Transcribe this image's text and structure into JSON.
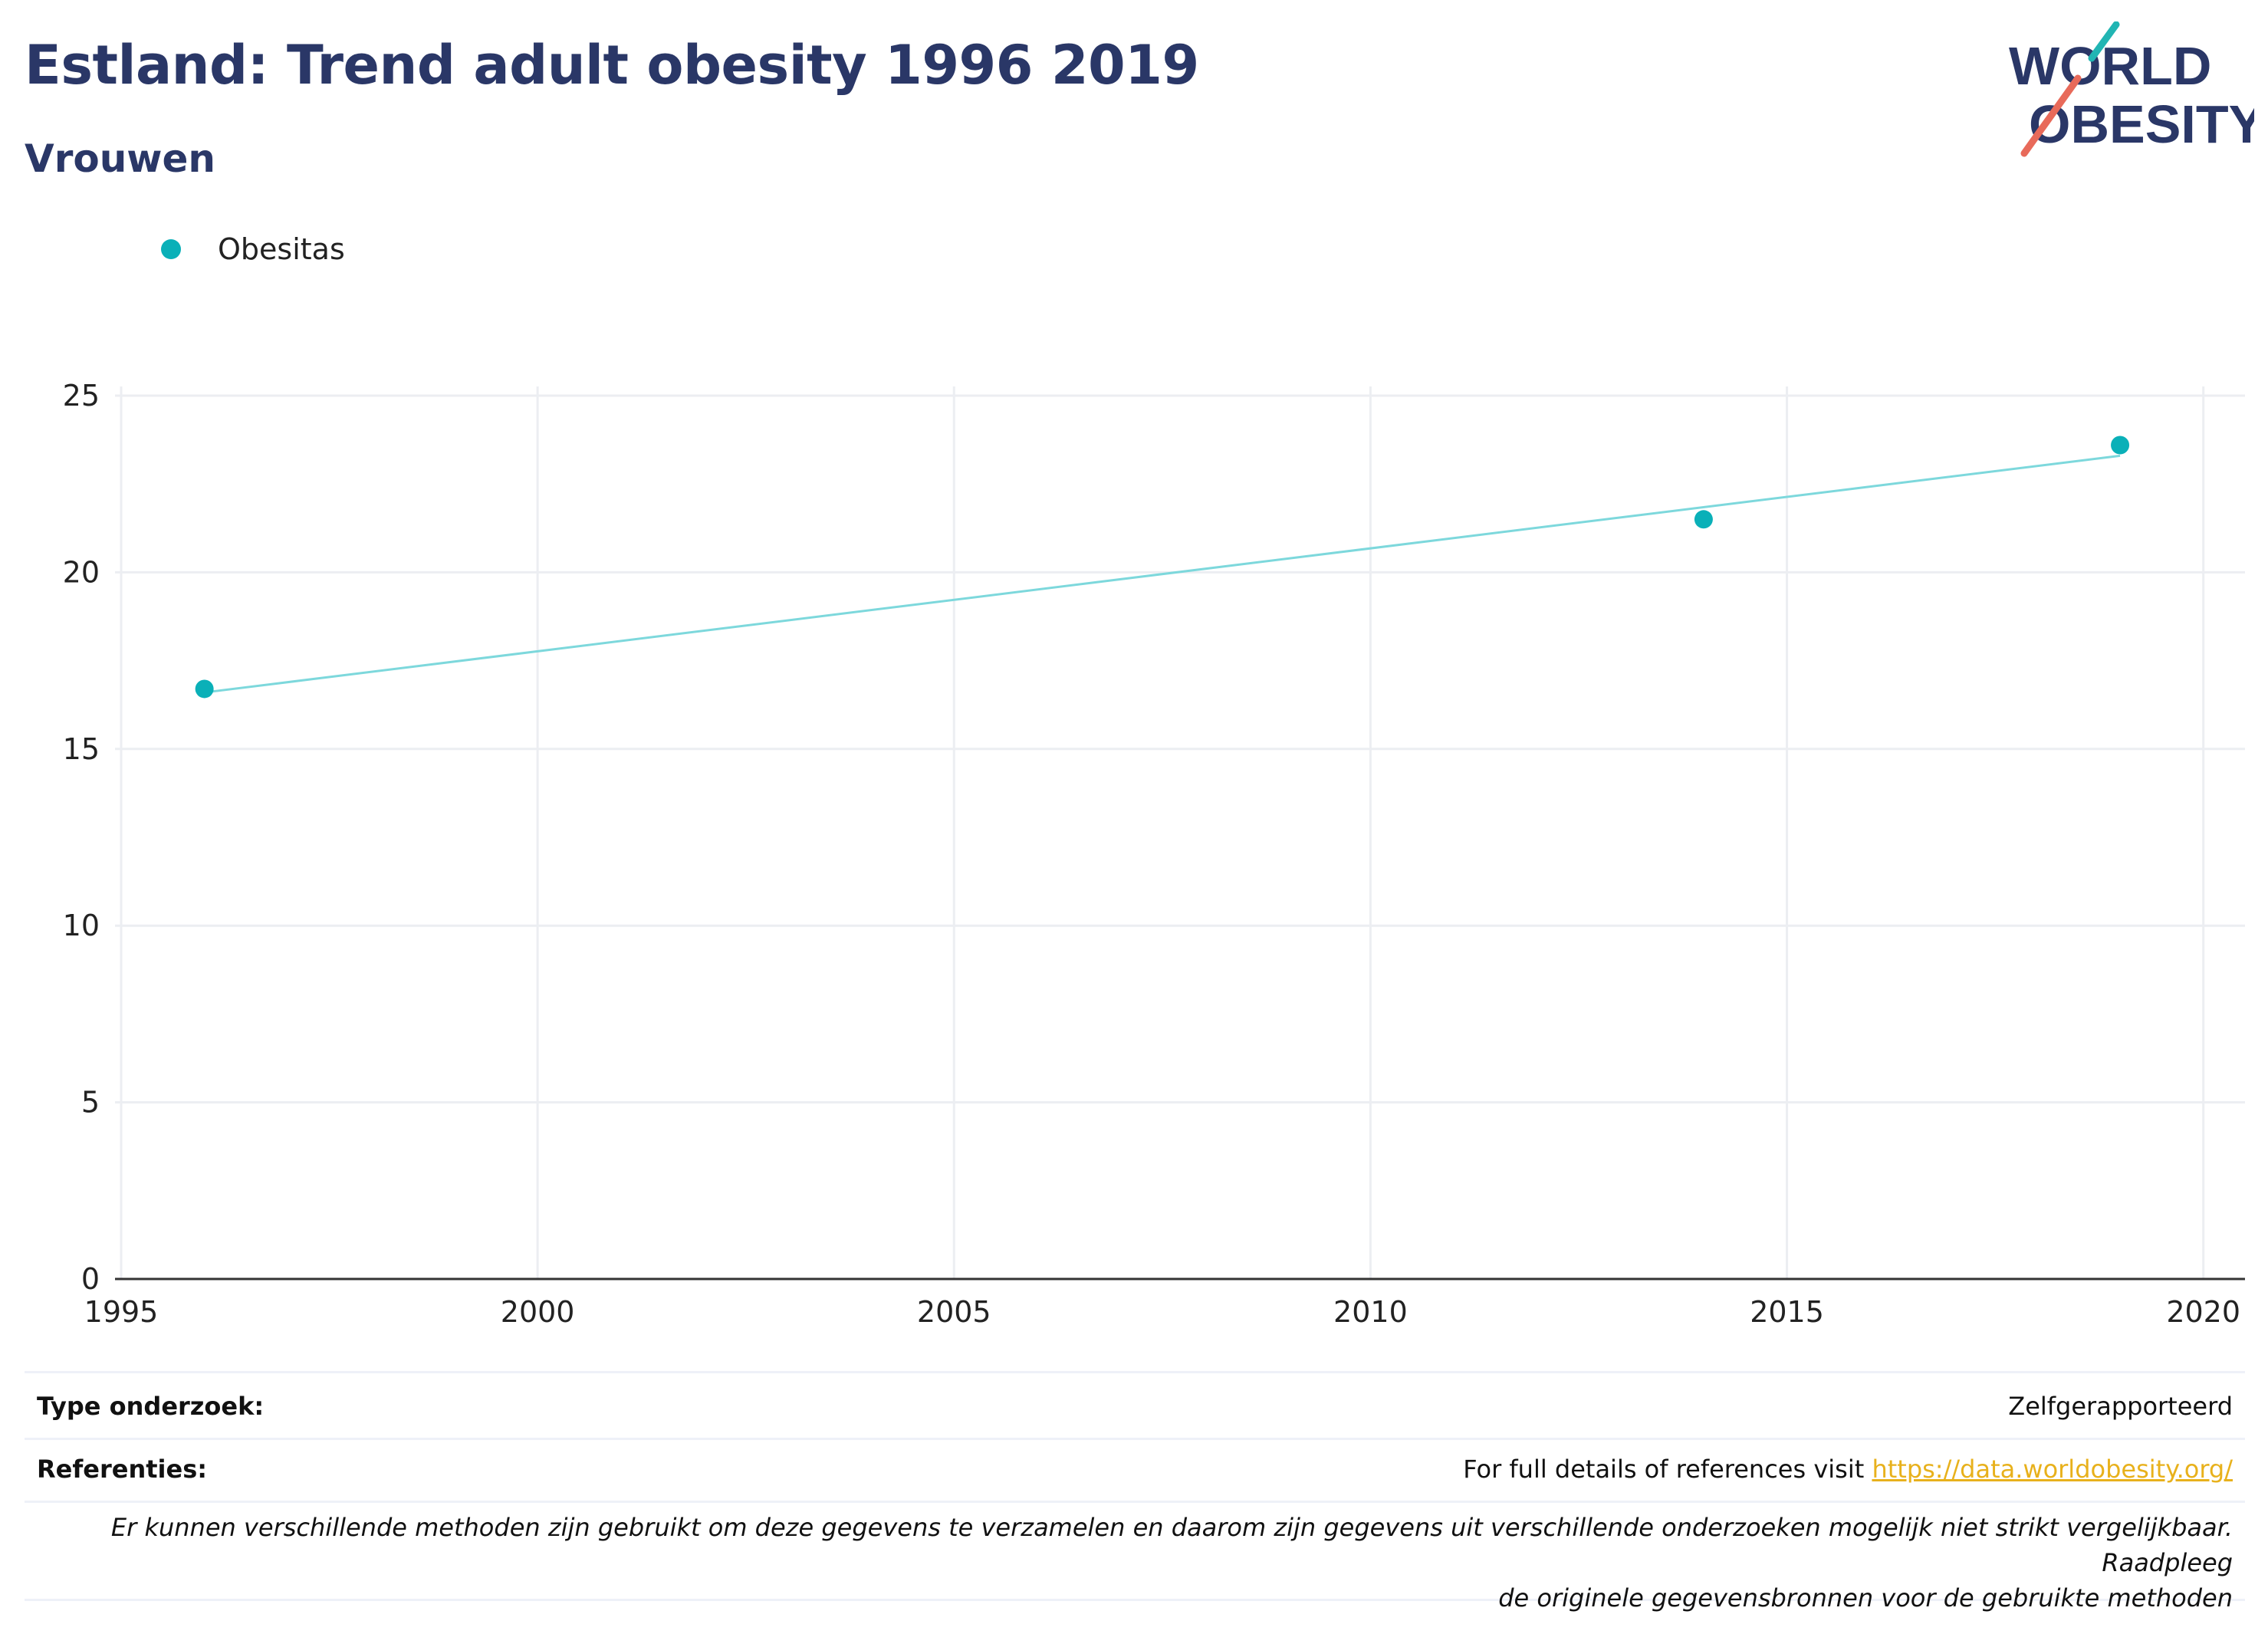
{
  "header": {
    "title": "Estland: Trend adult obesity 1996 2019",
    "subtitle": "Vrouwen"
  },
  "logo": {
    "line1": "WORLD",
    "line2": "OBESITY",
    "colors": {
      "text": "#2a3767",
      "slash_top": "#21b5b3",
      "slash_bottom": "#e86a5a"
    }
  },
  "colors": {
    "title": "#2a3767",
    "series": "#0ab0b8",
    "trendline": "#7dd8dc",
    "grid": "#eceef2",
    "axis": "#333333",
    "link": "#e8b11c"
  },
  "chart_data": {
    "type": "scatter",
    "title": "Estland: Trend adult obesity 1996 2019",
    "subtitle": "Vrouwen",
    "xlabel": "",
    "ylabel": "",
    "xlim": [
      1995,
      2020.5
    ],
    "ylim": [
      0,
      25
    ],
    "x_ticks": [
      1995,
      2000,
      2005,
      2010,
      2015,
      2020
    ],
    "y_ticks": [
      0,
      5,
      10,
      15,
      20,
      25
    ],
    "grid": true,
    "legend_position": "top-left",
    "series": [
      {
        "name": "Obesitas",
        "x": [
          1996,
          2014,
          2019
        ],
        "y": [
          16.7,
          21.5,
          23.6
        ]
      }
    ],
    "trendline": {
      "x": [
        1996,
        2019
      ],
      "y": [
        16.6,
        23.3
      ]
    }
  },
  "meta": {
    "type_label": "Type onderzoek:",
    "type_value": "Zelfgerapporteerd",
    "ref_label": "Referenties:",
    "ref_text": "For full details of references visit",
    "ref_link": "https://data.worldobesity.org/",
    "note_line1": "Er kunnen verschillende methoden zijn gebruikt om deze gegevens te verzamelen en daarom zijn gegevens uit verschillende onderzoeken mogelijk niet strikt vergelijkbaar. Raadpleeg",
    "note_line2": "de originele gegevensbronnen voor de gebruikte methoden"
  }
}
